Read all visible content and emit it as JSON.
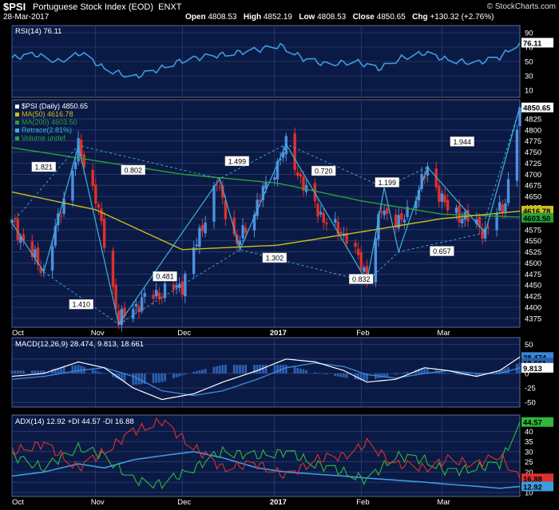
{
  "header": {
    "symbol": "$PSI",
    "name": "Portuguese Stock Index (EOD)",
    "exchange": "ENXT",
    "date": "28-Mar-2017",
    "open_label": "Open",
    "open": "4808.53",
    "high_label": "High",
    "high": "4852.19",
    "low_label": "Low",
    "low": "4808.53",
    "close_label": "Close",
    "close": "4850.65",
    "chg_label": "Chg",
    "chg": "+130.32 (+2.76%)",
    "credit": "© StockCharts.com"
  },
  "colors": {
    "background": "#000000",
    "panel": "#0b1a44",
    "grid": "#34488a",
    "rsi_line": "#3d9be0",
    "up_candle": "#4f8fe0",
    "down_candle": "#e0302a",
    "ma50": "#c9c01c",
    "ma200": "#2aa038",
    "retrace": "#3cb4d8",
    "macd_line": "#ffffff",
    "macd_signal": "#3a86d8",
    "macd_hist": "#2c5fb0",
    "adx": "#3d9be0",
    "plus_di": "#2fb83a",
    "minus_di": "#e03030"
  },
  "chart_data": [
    {
      "type": "line",
      "panel": "rsi",
      "legend": "RSI(14) 76.11",
      "last_value": "76.11",
      "ylim": [
        0,
        100
      ],
      "yticks": [
        10,
        30,
        50,
        70,
        90
      ],
      "x": [
        "2016-10-03",
        "2016-10-11",
        "2016-10-19",
        "2016-10-27",
        "2016-11-04",
        "2016-11-14",
        "2016-11-22",
        "2016-11-30",
        "2016-12-08",
        "2016-12-16",
        "2016-12-27",
        "2017-01-04",
        "2017-01-12",
        "2017-01-20",
        "2017-01-30",
        "2017-02-07",
        "2017-02-15",
        "2017-02-23",
        "2017-03-03",
        "2017-03-13",
        "2017-03-21",
        "2017-03-28"
      ],
      "values": [
        55,
        60,
        50,
        62,
        40,
        28,
        38,
        50,
        56,
        60,
        66,
        72,
        54,
        46,
        50,
        40,
        55,
        62,
        52,
        48,
        56,
        76.11
      ]
    },
    {
      "type": "candlestick",
      "panel": "price",
      "title": "$PSI (Daily) 4850.65",
      "legend": [
        "$PSI (Daily) 4850.65",
        "MA(50) 4616.78",
        "MA(200) 4603.50",
        "Retrace(2.81%)",
        "Volume undef"
      ],
      "ylim": [
        4355,
        4868
      ],
      "yticks": [
        4375,
        4400,
        4425,
        4450,
        4475,
        4500,
        4525,
        4550,
        4575,
        4600,
        4625,
        4650,
        4675,
        4700,
        4725,
        4750,
        4775,
        4800,
        4825
      ],
      "price_labels": [
        "4850.65",
        "4616.78",
        "4603.50"
      ],
      "x_labels": [
        "Oct",
        "Nov",
        "Dec",
        "2017",
        "Feb",
        "Mar"
      ],
      "ohlc_waypoints": [
        [
          "2016-10-03",
          4590
        ],
        [
          "2016-10-14",
          4480
        ],
        [
          "2016-10-26",
          4760
        ],
        [
          "2016-11-01",
          4650
        ],
        [
          "2016-11-09",
          4370
        ],
        [
          "2016-11-18",
          4420
        ],
        [
          "2016-12-01",
          4450
        ],
        [
          "2016-12-13",
          4680
        ],
        [
          "2016-12-20",
          4540
        ],
        [
          "2016-12-29",
          4660
        ],
        [
          "2017-01-06",
          4765
        ],
        [
          "2017-01-13",
          4660
        ],
        [
          "2017-01-20",
          4590
        ],
        [
          "2017-01-27",
          4560
        ],
        [
          "2017-02-03",
          4470
        ],
        [
          "2017-02-08",
          4620
        ],
        [
          "2017-02-15",
          4590
        ],
        [
          "2017-02-24",
          4710
        ],
        [
          "2017-03-03",
          4620
        ],
        [
          "2017-03-10",
          4600
        ],
        [
          "2017-03-16",
          4570
        ],
        [
          "2017-03-23",
          4640
        ],
        [
          "2017-03-28",
          4850.65
        ]
      ],
      "ma50": [
        [
          "2016-10-03",
          4660
        ],
        [
          "2016-11-01",
          4620
        ],
        [
          "2016-12-01",
          4530
        ],
        [
          "2017-01-03",
          4540
        ],
        [
          "2017-02-01",
          4570
        ],
        [
          "2017-03-01",
          4600
        ],
        [
          "2017-03-28",
          4616.78
        ]
      ],
      "ma200": [
        [
          "2016-10-03",
          4760
        ],
        [
          "2016-12-01",
          4700
        ],
        [
          "2017-01-03",
          4680
        ],
        [
          "2017-02-01",
          4640
        ],
        [
          "2017-03-01",
          4610
        ],
        [
          "2017-03-28",
          4603.5
        ]
      ],
      "retrace_zigzag": [
        [
          "2016-10-03",
          4590
        ],
        [
          "2016-10-14",
          4480
        ],
        [
          "2016-10-26",
          4765
        ],
        [
          "2016-11-09",
          4362
        ],
        [
          "2016-12-14",
          4690
        ],
        [
          "2016-12-21",
          4530
        ],
        [
          "2017-01-06",
          4768
        ],
        [
          "2017-02-03",
          4458
        ],
        [
          "2017-02-09",
          4670
        ],
        [
          "2017-02-14",
          4525
        ],
        [
          "2017-02-24",
          4716
        ],
        [
          "2017-03-16",
          4568
        ],
        [
          "2017-03-28",
          4852
        ]
      ],
      "ratio_labels": [
        "1.821",
        "0.802",
        "1.410",
        "0.481",
        "1.499",
        "1.302",
        "0.720",
        "1.199",
        "0.832",
        "0.657",
        "1.944"
      ]
    },
    {
      "type": "line",
      "panel": "macd",
      "legend": "MACD(12,26,9) 28.474, 9.813, 18.661",
      "labels": [
        "28.474",
        "18.661",
        "9.813"
      ],
      "ylim": [
        -58,
        62
      ],
      "yticks": [
        50,
        25,
        0,
        -25,
        -50
      ],
      "x": [
        "2016-10-03",
        "2016-10-14",
        "2016-10-26",
        "2016-11-04",
        "2016-11-14",
        "2016-11-24",
        "2016-12-05",
        "2016-12-15",
        "2016-12-27",
        "2017-01-06",
        "2017-01-16",
        "2017-01-26",
        "2017-02-03",
        "2017-02-13",
        "2017-02-23",
        "2017-03-03",
        "2017-03-13",
        "2017-03-21",
        "2017-03-28"
      ],
      "series": [
        {
          "name": "MACD",
          "values": [
            -5,
            0,
            20,
            10,
            -25,
            -45,
            -35,
            -15,
            5,
            25,
            20,
            5,
            -15,
            -10,
            10,
            5,
            -5,
            5,
            28.474
          ]
        },
        {
          "name": "Signal",
          "values": [
            -10,
            -5,
            5,
            10,
            -5,
            -30,
            -38,
            -30,
            -10,
            10,
            18,
            12,
            -2,
            -8,
            0,
            5,
            0,
            0,
            9.813
          ]
        },
        {
          "name": "Histogram",
          "values": [
            5,
            5,
            15,
            0,
            -20,
            -15,
            3,
            15,
            15,
            15,
            2,
            -7,
            -13,
            -2,
            10,
            0,
            -5,
            5,
            18.661
          ]
        }
      ]
    },
    {
      "type": "line",
      "panel": "adx",
      "legend": "ADX(14) 12.92 +DI 44.57 -DI 16.88",
      "labels": [
        "44.57",
        "16.88",
        "12.92"
      ],
      "ylim": [
        8,
        48
      ],
      "yticks": [
        40,
        35,
        30,
        25,
        20,
        15,
        10
      ],
      "x": [
        "2016-10-03",
        "2016-10-14",
        "2016-10-26",
        "2016-11-04",
        "2016-11-14",
        "2016-11-24",
        "2016-12-05",
        "2016-12-15",
        "2016-12-27",
        "2017-01-06",
        "2017-01-16",
        "2017-01-26",
        "2017-02-03",
        "2017-02-13",
        "2017-02-23",
        "2017-03-03",
        "2017-03-13",
        "2017-03-21",
        "2017-03-28"
      ],
      "series": [
        {
          "name": "ADX",
          "values": [
            18,
            20,
            24,
            22,
            26,
            28,
            30,
            27,
            22,
            20,
            19,
            18,
            17,
            16,
            15,
            14,
            13,
            12,
            12.92
          ]
        },
        {
          "name": "+DI",
          "values": [
            28,
            22,
            32,
            28,
            16,
            14,
            22,
            30,
            28,
            30,
            24,
            20,
            16,
            28,
            26,
            20,
            22,
            24,
            44.57
          ]
        },
        {
          "name": "-DI",
          "values": [
            30,
            34,
            22,
            30,
            40,
            45,
            32,
            22,
            24,
            18,
            26,
            28,
            34,
            24,
            22,
            26,
            24,
            28,
            16.88
          ]
        }
      ]
    }
  ]
}
